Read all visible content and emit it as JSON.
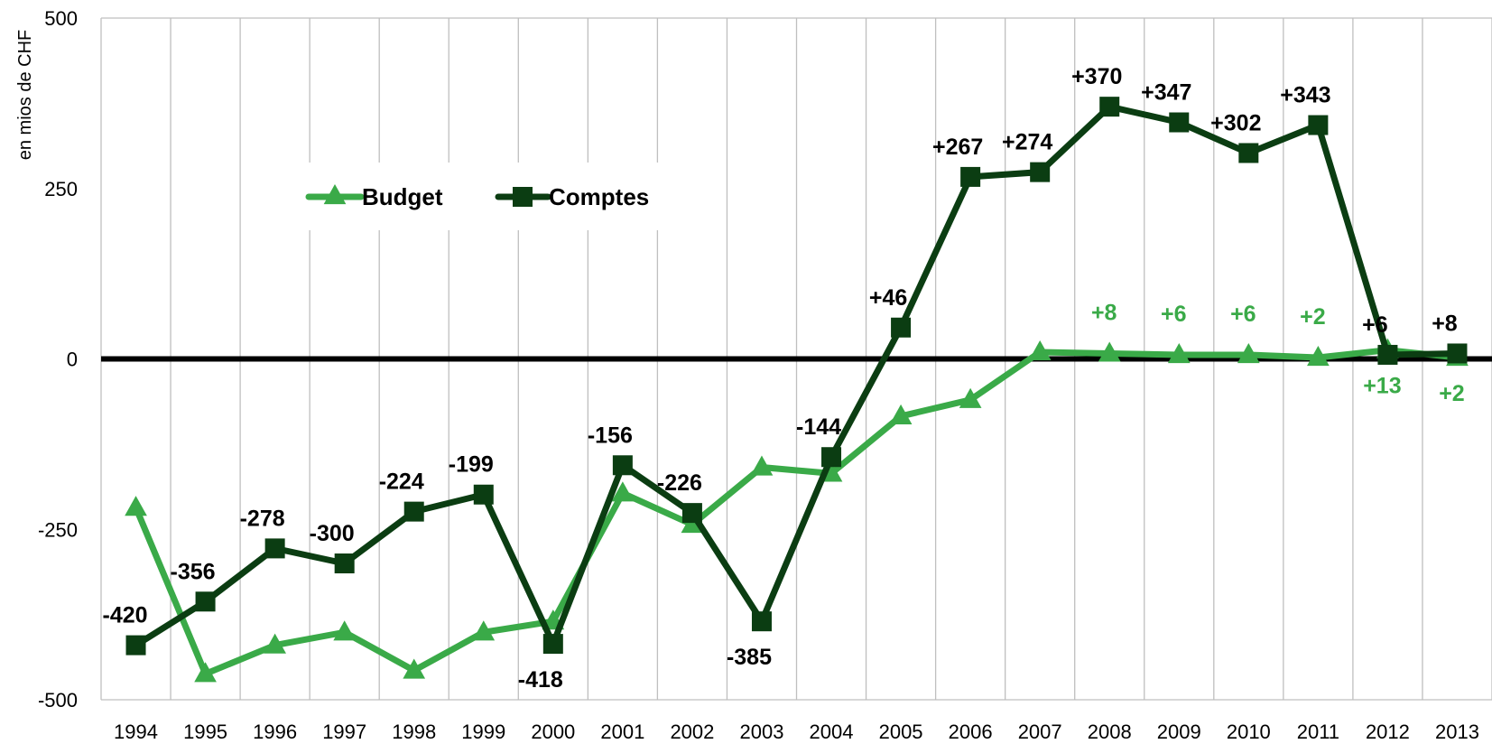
{
  "colors": {
    "budget": "#3aaa48",
    "comptes": "#0b3d12",
    "zero_line": "#000000",
    "grid": "#bfbfbf"
  },
  "chart_data": {
    "type": "line",
    "xlabel": "",
    "ylabel": "en mios de CHF",
    "ylim": [
      -500,
      500
    ],
    "yticks": [
      "500",
      "250",
      "0",
      "-250",
      "-500"
    ],
    "grid": true,
    "legend_placement": "top-left",
    "categories": [
      "1994",
      "1995",
      "1996",
      "1997",
      "1998",
      "1999",
      "2000",
      "2001",
      "2002",
      "2003",
      "2004",
      "2005",
      "2006",
      "2007",
      "2008",
      "2009",
      "2010",
      "2011",
      "2012",
      "2013"
    ],
    "series": [
      {
        "name": "Budget",
        "marker": "triangle",
        "values": [
          -218,
          -462,
          -420,
          -401,
          -457,
          -401,
          -385,
          -197,
          -243,
          -159,
          -168,
          -84,
          -60,
          10,
          8,
          6,
          6,
          2,
          13,
          2
        ],
        "labels": [
          "",
          "",
          "",
          "",
          "",
          "",
          "",
          "",
          "",
          "",
          "",
          "",
          "",
          "",
          "+8",
          "+6",
          "+6",
          "+2",
          "+13",
          "+2"
        ]
      },
      {
        "name": "Comptes",
        "marker": "square",
        "values": [
          -420,
          -356,
          -278,
          -300,
          -224,
          -199,
          -418,
          -156,
          -226,
          -385,
          -144,
          46,
          267,
          274,
          370,
          347,
          302,
          343,
          6,
          8
        ],
        "labels": [
          "-420",
          "-356",
          "-278",
          "-300",
          "-224",
          "-199",
          "-418",
          "-156",
          "-226",
          "-385",
          "-144",
          "+46",
          "+267",
          "+274",
          "+370",
          "+347",
          "+302",
          "+343",
          "+6",
          "+8"
        ]
      }
    ]
  }
}
